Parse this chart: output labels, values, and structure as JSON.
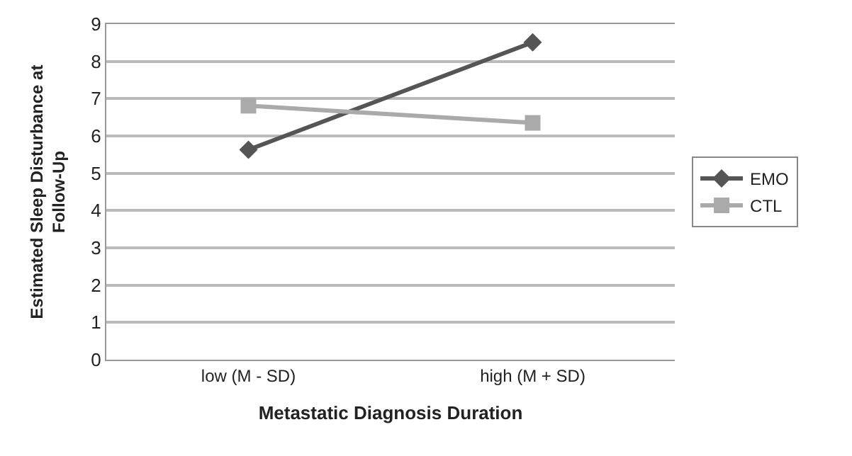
{
  "chart_data": {
    "type": "line",
    "xlabel": "Metastatic Diagnosis Duration",
    "ylabel": "Estimated Sleep Disturbance at Follow-Up",
    "categories": [
      "low (M - SD)",
      "high (M + SD)"
    ],
    "series": [
      {
        "name": "EMO",
        "color": "#555555",
        "values": [
          5.63,
          8.51
        ],
        "marker": "diamond"
      },
      {
        "name": "CTL",
        "color": "#aaaaaa",
        "values": [
          6.81,
          6.35
        ],
        "marker": "square"
      }
    ],
    "ylim": [
      0,
      9
    ],
    "yticks": [
      0,
      1,
      2,
      3,
      4,
      5,
      6,
      7,
      8,
      9
    ],
    "grid": "y",
    "legend": "right",
    "line_style": "solid"
  }
}
